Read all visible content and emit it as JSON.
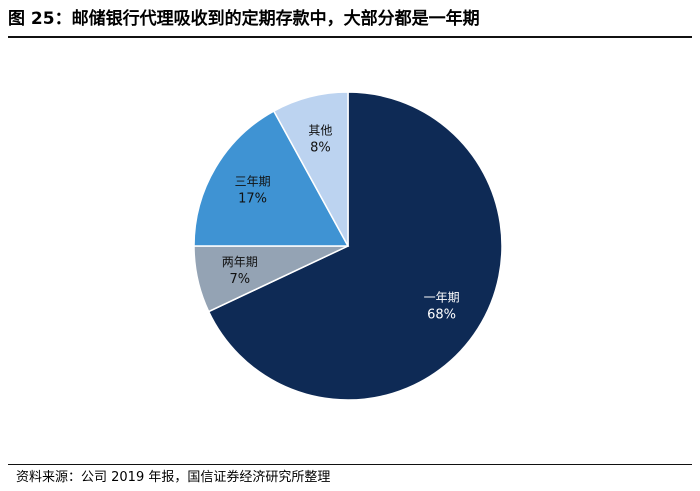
{
  "title": "图 25：邮储银行代理吸收到的定期存款中，大部分都是一年期",
  "source": "资料来源：公司 2019 年报，国信证券经济研究所整理",
  "chart_data": {
    "type": "pie",
    "start_angle_deg": 0,
    "direction": "clockwise",
    "slices": [
      {
        "label": "一年期",
        "value": 68,
        "value_label": "68%",
        "color": "#0e2a55",
        "text_color": "#ffffff"
      },
      {
        "label": "两年期",
        "value": 7,
        "value_label": "7%",
        "color": "#94a3b4",
        "text_color": "#111111"
      },
      {
        "label": "三年期",
        "value": 17,
        "value_label": "17%",
        "color": "#3f93d3",
        "text_color": "#111111"
      },
      {
        "label": "其他",
        "value": 8,
        "value_label": "8%",
        "color": "#bcd3f0",
        "text_color": "#111111"
      }
    ]
  }
}
